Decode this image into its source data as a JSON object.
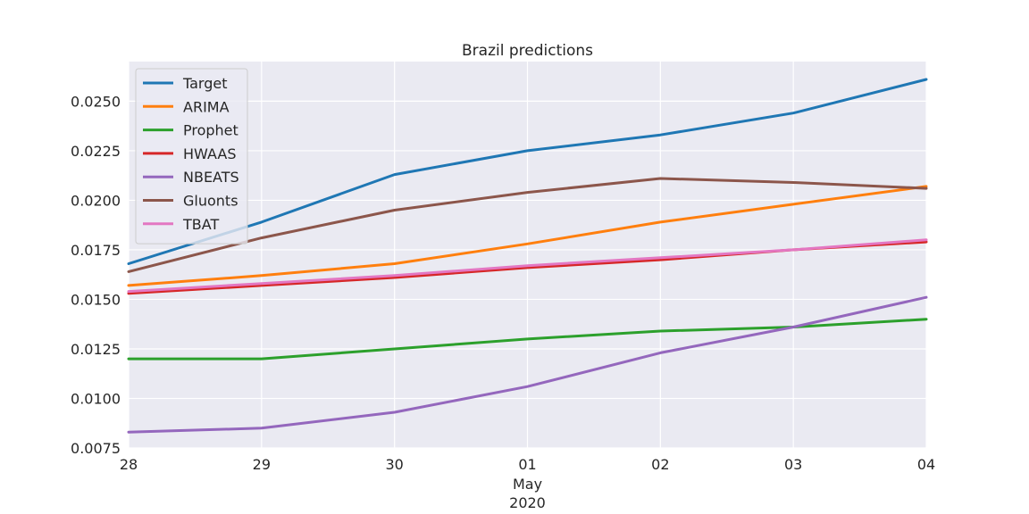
{
  "chart_data": {
    "type": "line",
    "title": "Brazil predictions",
    "xlabel": "",
    "ylabel": "",
    "x": [
      "28",
      "29",
      "30",
      "01",
      "02",
      "03",
      "04"
    ],
    "x_sublabels": [
      "May",
      "2020"
    ],
    "ylim": [
      0.0075,
      0.027
    ],
    "yticks": [
      "0.0075",
      "0.0100",
      "0.0125",
      "0.0150",
      "0.0175",
      "0.0200",
      "0.0225",
      "0.0250"
    ],
    "grid": true,
    "legend_position": "upper-left",
    "series": [
      {
        "name": "Target",
        "color": "#1f77b4",
        "values": [
          0.0168,
          0.0189,
          0.0213,
          0.0225,
          0.0233,
          0.0244,
          0.0261
        ]
      },
      {
        "name": "ARIMA",
        "color": "#ff7f0e",
        "values": [
          0.0157,
          0.0162,
          0.0168,
          0.0178,
          0.0189,
          0.0198,
          0.0207
        ]
      },
      {
        "name": "Prophet",
        "color": "#2ca02c",
        "values": [
          0.012,
          0.012,
          0.0125,
          0.013,
          0.0134,
          0.0136,
          0.014
        ]
      },
      {
        "name": "HWAAS",
        "color": "#d62728",
        "values": [
          0.0153,
          0.0157,
          0.0161,
          0.0166,
          0.017,
          0.0175,
          0.0179
        ]
      },
      {
        "name": "NBEATS",
        "color": "#9467bd",
        "values": [
          0.0083,
          0.0085,
          0.0093,
          0.0106,
          0.0123,
          0.0136,
          0.0151
        ]
      },
      {
        "name": "Gluonts",
        "color": "#8c564b",
        "values": [
          0.0164,
          0.0181,
          0.0195,
          0.0204,
          0.0211,
          0.0209,
          0.0206
        ]
      },
      {
        "name": "TBAT",
        "color": "#e377c2",
        "values": [
          0.0154,
          0.0158,
          0.0162,
          0.0167,
          0.0171,
          0.0175,
          0.018
        ]
      }
    ]
  }
}
